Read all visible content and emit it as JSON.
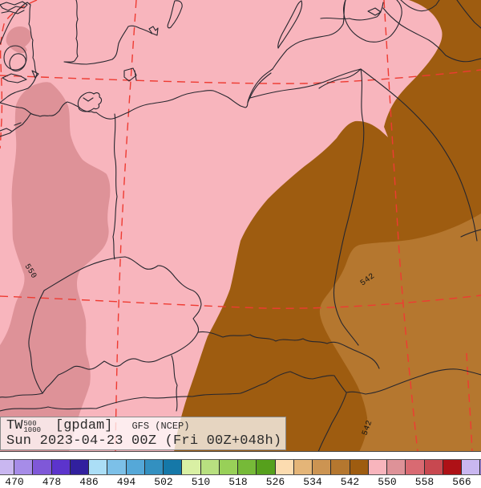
{
  "title_box": {
    "param": "TW",
    "level_top": "500",
    "level_bottom": "1000",
    "unit": "[gpdam]",
    "model": "GFS (NCEP)",
    "valid_line": "Sun 2023-04-23 00Z (Fri 00Z+048h)"
  },
  "map": {
    "contour_labels": [
      {
        "text": "550"
      },
      {
        "text": "542"
      },
      {
        "text": "542"
      }
    ],
    "colors": {
      "band_546_550": "#f8b5bd",
      "band_550_554": "#de9298",
      "band_542_546": "#9e5c10",
      "band_538_542": "#b5772f",
      "grid_line": "#ee3b32",
      "border_line": "#26262e",
      "label_text": "#141414"
    }
  },
  "colorbar": {
    "tick_labels": [
      "470",
      "478",
      "486",
      "494",
      "502",
      "510",
      "518",
      "526",
      "534",
      "542",
      "550",
      "558",
      "566"
    ],
    "tick_start_x": 18,
    "tick_spacing": 46.5,
    "first_cell_width": 18,
    "cell_width": 23.25,
    "cell_colors": [
      "#c9b7f0",
      "#a68ce8",
      "#7f58d8",
      "#5c34cc",
      "#31209e",
      "#abdef6",
      "#7cc0e8",
      "#55a8d8",
      "#3390c0",
      "#1578a8",
      "#d9f0a4",
      "#b8e080",
      "#98d058",
      "#76ba38",
      "#56a01c",
      "#fcdcb0",
      "#e4b578",
      "#cc9452",
      "#b5772f",
      "#9e5c10",
      "#f8b5bd",
      "#de9298",
      "#d96a72",
      "#c84850",
      "#ae1116",
      "#c9b7f0",
      "#a68ce8"
    ]
  }
}
